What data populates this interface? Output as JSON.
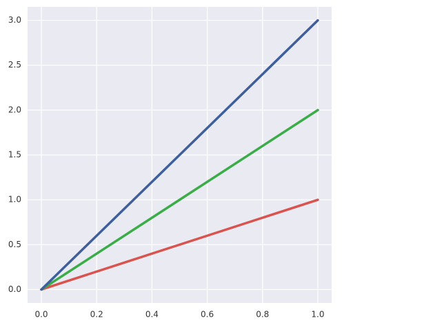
{
  "chart_data": {
    "type": "line",
    "x": [
      0,
      1
    ],
    "series": [
      {
        "color": "#d9534f",
        "values": [
          0,
          1
        ]
      },
      {
        "color": "#3aac48",
        "values": [
          0,
          2
        ]
      },
      {
        "color": "#3e5f9b",
        "values": [
          0,
          3
        ]
      }
    ],
    "xlim": [
      -0.05,
      1.05
    ],
    "ylim": [
      -0.15,
      3.15
    ],
    "xticks": [
      {
        "value": 0,
        "label": "0.0"
      },
      0.2,
      0.4,
      0.6,
      0.8,
      {
        "value": 1,
        "label": "1.0"
      }
    ],
    "yticks": [
      {
        "value": 0,
        "label": "0.0"
      },
      0.5,
      {
        "value": 1,
        "label": "1.0"
      },
      1.5,
      {
        "value": 2,
        "label": "2.0"
      },
      2.5,
      {
        "value": 3,
        "label": "3.0"
      }
    ],
    "grid": true
  }
}
